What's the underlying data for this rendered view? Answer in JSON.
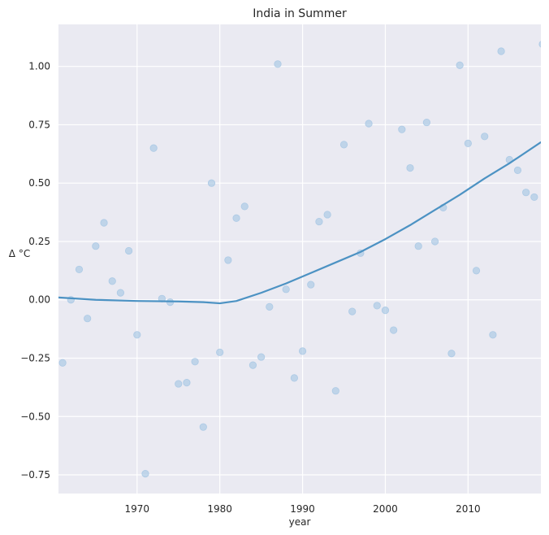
{
  "chart_data": {
    "type": "scatter",
    "title": "India in Summer",
    "xlabel": "year",
    "ylabel": "Δ °C",
    "xlim": [
      1960.5,
      2018.8
    ],
    "ylim": [
      -0.83,
      1.18
    ],
    "xticks": [
      1970,
      1980,
      1990,
      2000,
      2010
    ],
    "yticks": [
      -0.75,
      -0.5,
      -0.25,
      0.0,
      0.25,
      0.5,
      0.75,
      1.0
    ],
    "ytick_labels": [
      "−0.75",
      "−0.50",
      "−0.25",
      "0.00",
      "0.25",
      "0.50",
      "0.75",
      "1.00"
    ],
    "grid": true,
    "colors": {
      "background": "#eaeaf2",
      "grid": "#ffffff",
      "points": "#a8c8e4",
      "line": "#4c92c3"
    },
    "series": [
      {
        "kind": "scatter",
        "x": [
          1961,
          1962,
          1963,
          1964,
          1965,
          1966,
          1967,
          1968,
          1969,
          1970,
          1971,
          1972,
          1973,
          1974,
          1975,
          1976,
          1977,
          1978,
          1979,
          1980,
          1981,
          1982,
          1983,
          1984,
          1985,
          1986,
          1987,
          1988,
          1989,
          1990,
          1991,
          1992,
          1993,
          1994,
          1995,
          1996,
          1997,
          1998,
          1999,
          2000,
          2001,
          2002,
          2003,
          2004,
          2005,
          2006,
          2007,
          2008,
          2009,
          2010,
          2011,
          2012,
          2013,
          2014,
          2015,
          2016,
          2017,
          2018,
          2019
        ],
        "y": [
          -0.27,
          0.0,
          0.13,
          -0.08,
          0.23,
          0.33,
          0.08,
          0.03,
          0.21,
          -0.15,
          -0.745,
          0.65,
          0.005,
          -0.01,
          -0.36,
          -0.355,
          -0.265,
          -0.545,
          0.5,
          -0.225,
          0.17,
          0.35,
          0.4,
          -0.28,
          -0.245,
          -0.03,
          1.01,
          0.045,
          -0.335,
          -0.22,
          0.065,
          0.335,
          0.365,
          -0.39,
          0.665,
          -0.05,
          0.2,
          0.755,
          -0.025,
          -0.045,
          -0.13,
          0.73,
          0.565,
          0.23,
          0.76,
          0.25,
          0.395,
          -0.23,
          1.005,
          0.67,
          0.125,
          0.7,
          -0.15,
          1.065,
          0.6,
          0.555,
          0.46,
          0.44,
          1.095
        ]
      },
      {
        "kind": "line",
        "x": [
          1960.5,
          1965,
          1970,
          1975,
          1978,
          1980,
          1982,
          1985,
          1988,
          1991,
          1994,
          1997,
          2000,
          2003,
          2006,
          2009,
          2012,
          2015,
          2018.8
        ],
        "y": [
          0.01,
          0.0,
          -0.005,
          -0.007,
          -0.01,
          -0.015,
          -0.005,
          0.03,
          0.07,
          0.115,
          0.16,
          0.205,
          0.26,
          0.32,
          0.385,
          0.45,
          0.52,
          0.585,
          0.675
        ]
      }
    ]
  }
}
